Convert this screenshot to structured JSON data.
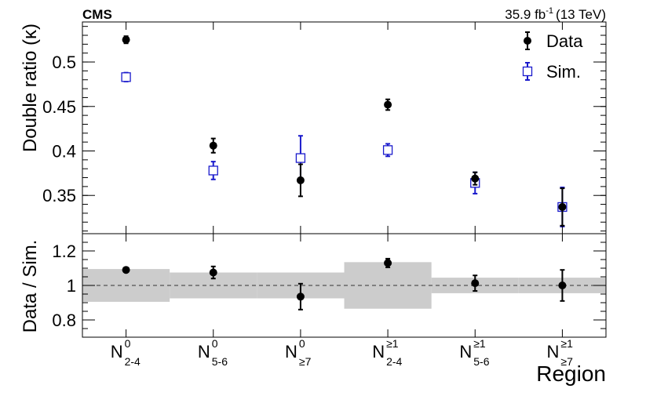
{
  "header": {
    "experiment": "CMS",
    "lumi_value": "35.9 fb",
    "lumi_exponent": "-1",
    "energy": "(13 TeV)"
  },
  "chart_data": [
    {
      "type": "scatter",
      "panel": "upper",
      "ylabel": "Double ratio (κ)",
      "ylim": [
        0.307,
        0.545
      ],
      "yticks": [
        0.35,
        0.4,
        0.45,
        0.5
      ],
      "ytick_labels": [
        "0.35",
        "0.4",
        "0.45",
        "0.5"
      ],
      "legend_position": "top-right",
      "categories": [
        {
          "base": "N",
          "sup": "0",
          "sub": "2-4"
        },
        {
          "base": "N",
          "sup": "0",
          "sub": "5-6"
        },
        {
          "base": "N",
          "sup": "0",
          "sub": "≥7"
        },
        {
          "base": "N",
          "sup": "≥1",
          "sub": "2-4"
        },
        {
          "base": "N",
          "sup": "≥1",
          "sub": "5-6"
        },
        {
          "base": "N",
          "sup": "≥1",
          "sub": "≥7"
        }
      ],
      "series": [
        {
          "name": "Data",
          "color": "#000000",
          "marker": "filled-circle",
          "values": [
            0.525,
            0.406,
            0.367,
            0.452,
            0.369,
            0.337
          ],
          "err_low": [
            0.004,
            0.008,
            0.018,
            0.006,
            0.007,
            0.021
          ],
          "err_high": [
            0.004,
            0.008,
            0.018,
            0.006,
            0.007,
            0.021
          ]
        },
        {
          "name": "Sim.",
          "color": "#1a1acc",
          "marker": "open-square",
          "values": [
            0.483,
            0.378,
            0.392,
            0.401,
            0.364,
            0.337
          ],
          "err_low": [
            0.005,
            0.01,
            0.025,
            0.007,
            0.012,
            0.022
          ],
          "err_high": [
            0.005,
            0.01,
            0.025,
            0.007,
            0.012,
            0.022
          ]
        }
      ]
    },
    {
      "type": "scatter",
      "panel": "lower",
      "ylabel": "Data / Sim.",
      "xlabel": "Region",
      "ylim": [
        0.7,
        1.3
      ],
      "yticks": [
        0.8,
        1.0,
        1.2
      ],
      "ytick_labels": [
        "0.8",
        "1",
        "1.2"
      ],
      "reference_line": 1.0,
      "band_color": "#cccccc",
      "bands": [
        {
          "low": 0.905,
          "high": 1.095
        },
        {
          "low": 0.925,
          "high": 1.075
        },
        {
          "low": 0.925,
          "high": 1.075
        },
        {
          "low": 0.865,
          "high": 1.135
        },
        {
          "low": 0.955,
          "high": 1.045
        },
        {
          "low": 0.955,
          "high": 1.045
        }
      ],
      "series": [
        {
          "name": "",
          "color": "#000000",
          "marker": "filled-circle",
          "values": [
            1.09,
            1.075,
            0.935,
            1.13,
            1.013,
            1.0
          ],
          "err_low": [
            0.012,
            0.035,
            0.075,
            0.025,
            0.045,
            0.09
          ],
          "err_high": [
            0.012,
            0.035,
            0.075,
            0.025,
            0.045,
            0.09
          ]
        }
      ]
    }
  ]
}
